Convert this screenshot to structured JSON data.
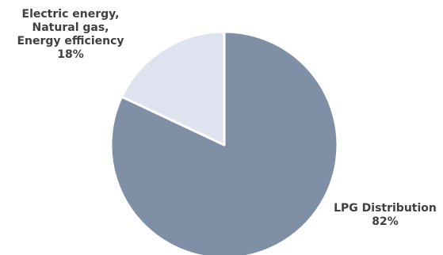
{
  "chart_data": {
    "type": "pie",
    "slices": [
      {
        "label_lines": [
          "LPG Distribution"
        ],
        "value": 82,
        "percent_label": "82%",
        "color": "#7f8fa6"
      },
      {
        "label_lines": [
          "Electric energy,",
          "Natural gas,",
          "Energy efficiency"
        ],
        "value": 18,
        "percent_label": "18%",
        "color": "#dfe3f0"
      }
    ],
    "start_angle": "12 o'clock",
    "direction": "clockwise",
    "legend": "none"
  }
}
